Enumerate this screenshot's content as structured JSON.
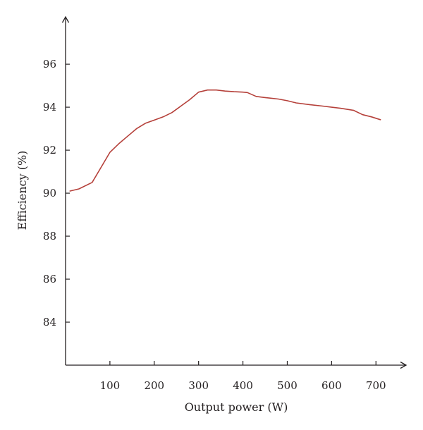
{
  "chart_data": {
    "type": "line",
    "xlabel": "Output power (W)",
    "ylabel": "Efficiency (%)",
    "xlim": [
      0,
      760
    ],
    "ylim": [
      82,
      98.2
    ],
    "xticks": [
      100,
      200,
      300,
      400,
      500,
      600,
      700
    ],
    "yticks": [
      84,
      86,
      88,
      90,
      92,
      94,
      96
    ],
    "grid": false,
    "colors": {
      "series": "#b5403a",
      "axis": "#231f20"
    },
    "series": [
      {
        "x": [
          10,
          30,
          60,
          80,
          100,
          120,
          140,
          160,
          180,
          200,
          220,
          240,
          260,
          280,
          300,
          320,
          340,
          360,
          380,
          400,
          410,
          430,
          450,
          480,
          500,
          520,
          550,
          580,
          600,
          620,
          650,
          670,
          690,
          710
        ],
        "y": [
          90.1,
          90.2,
          90.5,
          91.2,
          91.9,
          92.3,
          92.65,
          93.0,
          93.25,
          93.4,
          93.55,
          93.75,
          94.05,
          94.35,
          94.7,
          94.8,
          94.8,
          94.75,
          94.72,
          94.7,
          94.68,
          94.5,
          94.45,
          94.38,
          94.3,
          94.2,
          94.12,
          94.05,
          94.0,
          93.95,
          93.85,
          93.65,
          93.55,
          93.42
        ]
      }
    ]
  }
}
